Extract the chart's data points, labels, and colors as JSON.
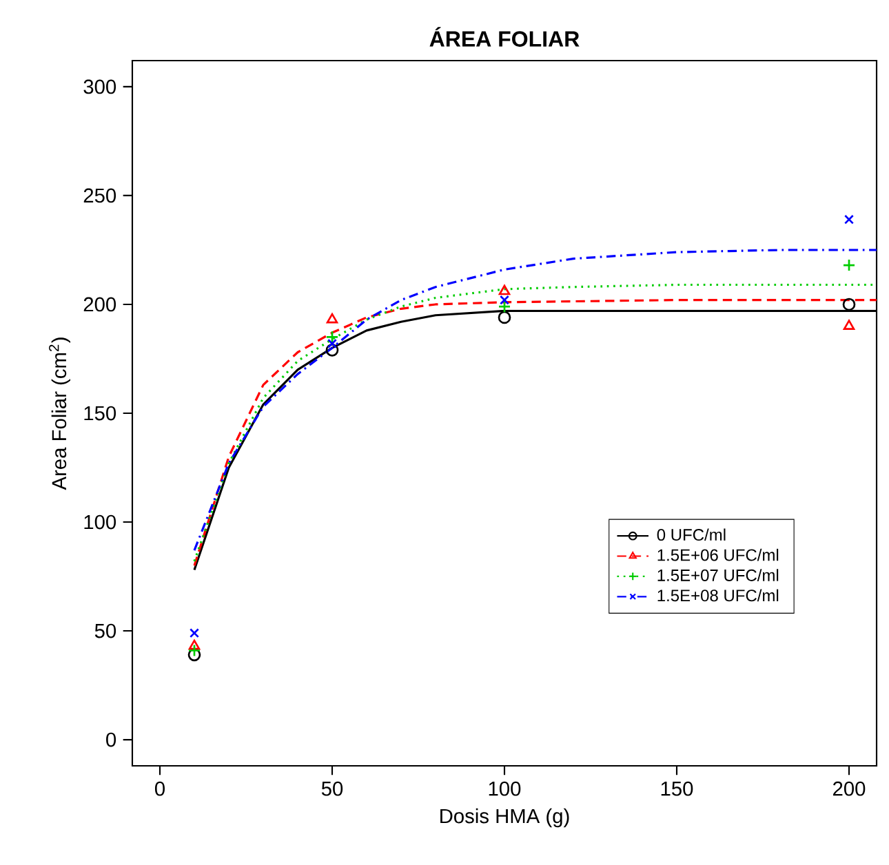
{
  "chart_data": {
    "type": "scatter",
    "title": "**ÁREA FOLIAR**",
    "xlabel": "Dosis HMA (g)",
    "ylabel": "Area Foliar (cm$^{2}$)",
    "xlim": [
      -8,
      208
    ],
    "ylim": [
      -12,
      312
    ],
    "xticks": [
      0,
      50,
      100,
      150,
      200
    ],
    "yticks": [
      0,
      50,
      100,
      150,
      200,
      250,
      300
    ],
    "grid": false,
    "legend": "right",
    "series": [
      {
        "name": "0 UFC/ml",
        "color": "#000000",
        "marker": "circle",
        "x": [
          10,
          50,
          100,
          200
        ],
        "values": [
          39,
          179,
          194,
          200
        ]
      },
      {
        "name": "1.5E+06 UFC/ml",
        "color": "#ff0000",
        "marker": "triangle",
        "x": [
          10,
          50,
          100,
          200
        ],
        "values": [
          43,
          193,
          206,
          190
        ]
      },
      {
        "name": "1.5E+07 UFC/ml",
        "color": "#00cc00",
        "marker": "plus",
        "x": [
          10,
          50,
          100,
          200
        ],
        "values": [
          41,
          185,
          199,
          218
        ]
      },
      {
        "name": "1.5E+08 UFC/ml",
        "color": "#0000ff",
        "marker": "cross",
        "x": [
          10,
          50,
          100,
          200
        ],
        "values": [
          49,
          182,
          202,
          239
        ]
      },
      {
        "type": "line",
        "color": "#000000",
        "line_style": "solid",
        "x": [
          10,
          20,
          30,
          40,
          50,
          60,
          70,
          80,
          100,
          120,
          150,
          208
        ],
        "values": [
          78,
          125,
          154,
          170,
          180,
          188,
          192,
          195,
          197,
          197,
          197,
          197
        ]
      },
      {
        "type": "line",
        "color": "#ff0000",
        "line_style": "dashed",
        "x": [
          10,
          20,
          30,
          40,
          50,
          60,
          70,
          80,
          100,
          150,
          208
        ],
        "values": [
          80,
          130,
          163,
          178,
          187,
          194,
          198,
          200,
          201,
          202,
          202
        ]
      },
      {
        "type": "line",
        "color": "#00cc00",
        "line_style": "dotted",
        "x": [
          10,
          20,
          30,
          40,
          50,
          60,
          70,
          80,
          100,
          120,
          150,
          208
        ],
        "values": [
          82,
          127,
          157,
          174,
          184,
          193,
          199,
          203,
          207,
          208,
          209,
          209
        ]
      },
      {
        "type": "line",
        "color": "#0000ff",
        "line_style": "dashdot",
        "x": [
          10,
          20,
          30,
          40,
          50,
          60,
          70,
          80,
          100,
          120,
          150,
          180,
          208
        ],
        "values": [
          87,
          127,
          153,
          168,
          180,
          193,
          202,
          208,
          216,
          221,
          224,
          225,
          225
        ]
      }
    ]
  }
}
